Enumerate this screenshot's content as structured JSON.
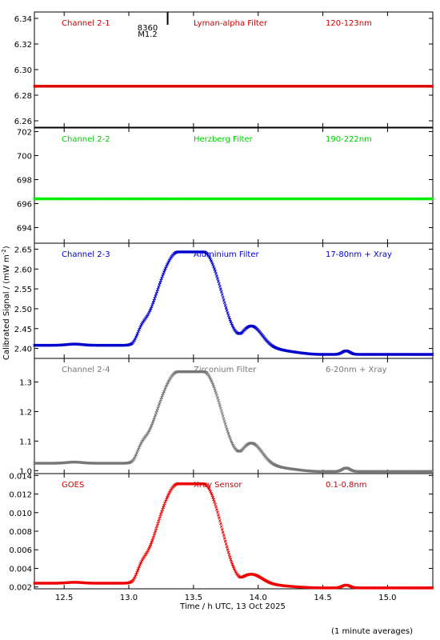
{
  "chart_data": {
    "type": "scatter",
    "ylabel": "Calibrated Signal / (mW m",
    "ylabel_sup": "-2",
    "ylabel_end": ")",
    "xlabel": "Time / h UTC, 13 Oct 2025",
    "note": "(1 minute averages)",
    "xlim": [
      12.27,
      15.35
    ],
    "x_ticks": [
      12.5,
      13.0,
      13.5,
      14.0,
      14.5,
      15.0
    ],
    "x_tick_labels": [
      "12.5",
      "13.0",
      "13.5",
      "14.0",
      "14.5",
      "15.0"
    ],
    "event_marker": {
      "x": 13.3,
      "region": "8360",
      "class": "M1.2"
    },
    "panels": [
      {
        "channel": "Channel 2-1",
        "filter": "Lyman-alpha Filter",
        "band": "120-123nm",
        "color": "#dd0000",
        "text_color": "#cc0000",
        "ylim": [
          6.255,
          6.345
        ],
        "yticks": [
          6.26,
          6.28,
          6.3,
          6.32,
          6.34
        ],
        "ytick_labels": [
          "6.26",
          "6.28",
          "6.30",
          "6.32",
          "6.34"
        ],
        "profile": {
          "base": 6.287,
          "peak": 6.287,
          "b2": 0,
          "b3": 0,
          "b4": 0,
          "b5": 0,
          "drift": 0,
          "tail": 0,
          "bump": 0
        }
      },
      {
        "channel": "Channel 2-2",
        "filter": "Herzberg Filter",
        "band": "190-222nm",
        "color": "#00ee00",
        "text_color": "#00cc00",
        "ylim": [
          692.7,
          702.3
        ],
        "yticks": [
          694,
          696,
          698,
          700,
          702
        ],
        "ytick_labels": [
          "694",
          "696",
          "698",
          "700",
          "702"
        ],
        "profile": {
          "base": 696.4,
          "peak": 696.4,
          "b2": 0,
          "b3": 0,
          "b4": 0,
          "b5": 0,
          "drift": 0,
          "tail": 0,
          "bump": 0
        }
      },
      {
        "channel": "Channel 2-3",
        "filter": "Aluminium Filter",
        "band": "17-80nm + Xray",
        "color": "#0000cc",
        "text_color": "#0000cc",
        "ylim": [
          2.375,
          2.665
        ],
        "yticks": [
          2.4,
          2.45,
          2.5,
          2.55,
          2.6,
          2.65
        ],
        "ytick_labels": [
          "2.40",
          "2.45",
          "2.50",
          "2.55",
          "2.60",
          "2.65"
        ],
        "profile": {
          "base": 2.396,
          "peak": 2.643,
          "b2": 2.408,
          "b3": 2.435,
          "b4": 2.48,
          "b5": 2.43,
          "drift": -0.012,
          "tail": 2.385,
          "bump": 0.003
        }
      },
      {
        "channel": "Channel 2-4",
        "filter": "Zirconium Filter",
        "band": "6-20nm + Xray",
        "color": "#777777",
        "text_color": "#777777",
        "ylim": [
          0.99,
          1.38
        ],
        "yticks": [
          1.0,
          1.1,
          1.2,
          1.3
        ],
        "ytick_labels": [
          "1.0",
          "1.1",
          "1.2",
          "1.3"
        ],
        "profile": {
          "base": 1.02,
          "peak": 1.335,
          "b2": 1.025,
          "b3": 1.063,
          "b4": 1.12,
          "b5": 1.05,
          "drift": -0.015,
          "tail": 0.997,
          "bump": 0.004
        }
      },
      {
        "channel": "GOES",
        "filter": "Xray Sensor",
        "band": "0.1-0.8nm",
        "color": "#ee0000",
        "text_color": "#cc0000",
        "ylim": [
          0.0018,
          0.0142
        ],
        "yticks": [
          0.002,
          0.004,
          0.006,
          0.008,
          0.01,
          0.012,
          0.014
        ],
        "ytick_labels": [
          "0.002",
          "0.004",
          "0.006",
          "0.008",
          "0.010",
          "0.012",
          "0.014"
        ],
        "profile": {
          "base": 0.0021,
          "peak": 0.0131,
          "b2": 0.0024,
          "b3": 0.0036,
          "b4": 0.0043,
          "b5": 0.0033,
          "drift": -0.0002,
          "tail": 0.0019,
          "bump": 0.0001
        }
      }
    ]
  }
}
